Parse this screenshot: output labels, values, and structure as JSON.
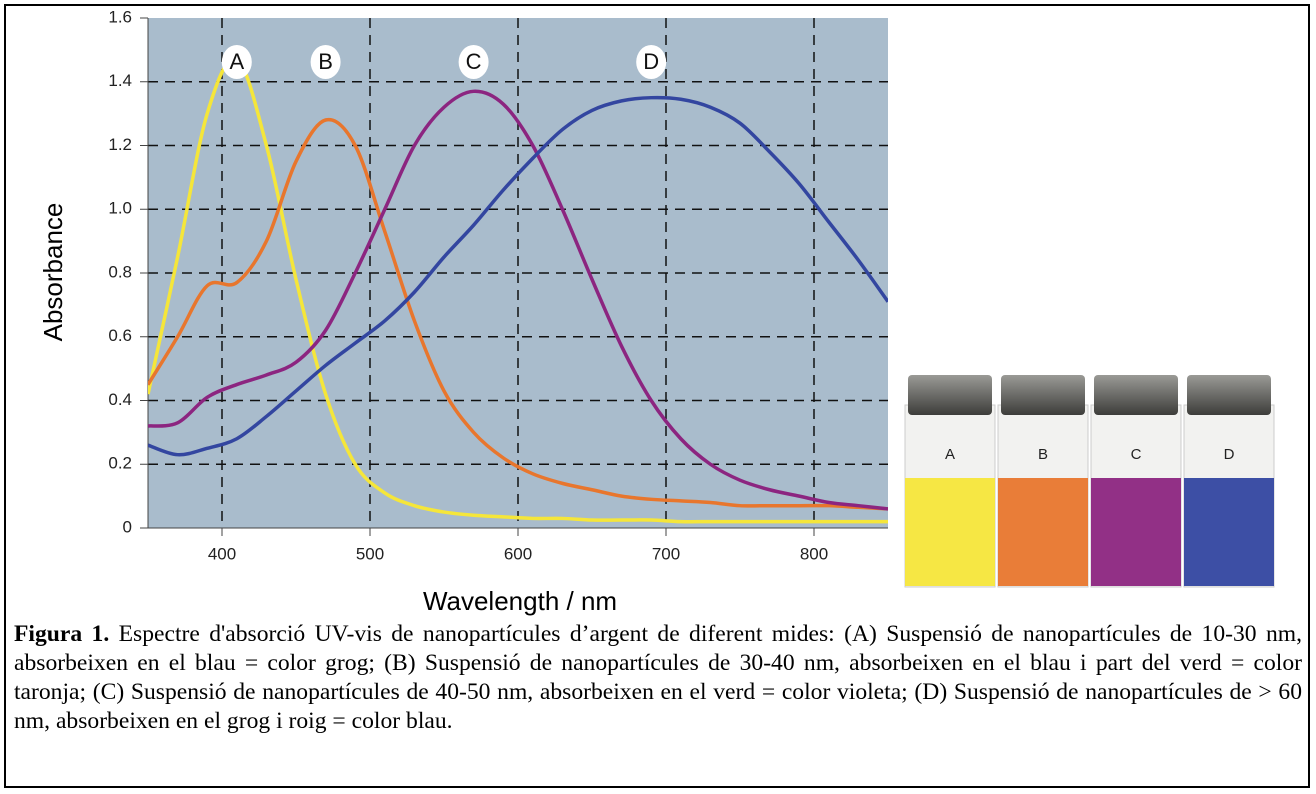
{
  "chart_data": {
    "type": "line",
    "x_label": "Wavelength / nm",
    "y_label": "Absorbance",
    "x": [
      350,
      370,
      390,
      410,
      430,
      450,
      470,
      490,
      510,
      530,
      550,
      570,
      590,
      610,
      630,
      650,
      670,
      690,
      710,
      730,
      750,
      770,
      790,
      810,
      830,
      850
    ],
    "series": [
      {
        "name": "A",
        "color": "#f5e63a",
        "values": [
          0.42,
          0.85,
          1.3,
          1.47,
          1.2,
          0.78,
          0.42,
          0.2,
          0.11,
          0.07,
          0.05,
          0.04,
          0.035,
          0.03,
          0.03,
          0.025,
          0.025,
          0.025,
          0.02,
          0.02,
          0.02,
          0.02,
          0.02,
          0.02,
          0.02,
          0.02
        ]
      },
      {
        "name": "B",
        "color": "#e8762d",
        "values": [
          0.45,
          0.6,
          0.76,
          0.77,
          0.9,
          1.15,
          1.28,
          1.2,
          0.93,
          0.65,
          0.43,
          0.3,
          0.22,
          0.17,
          0.14,
          0.12,
          0.1,
          0.09,
          0.085,
          0.08,
          0.07,
          0.07,
          0.07,
          0.07,
          0.065,
          0.06
        ]
      },
      {
        "name": "C",
        "color": "#8c2580",
        "values": [
          0.32,
          0.33,
          0.41,
          0.45,
          0.48,
          0.52,
          0.62,
          0.8,
          1.0,
          1.2,
          1.32,
          1.37,
          1.33,
          1.2,
          1.0,
          0.78,
          0.57,
          0.4,
          0.28,
          0.2,
          0.15,
          0.12,
          0.1,
          0.08,
          0.07,
          0.06
        ]
      },
      {
        "name": "D",
        "color": "#3346a0",
        "values": [
          0.26,
          0.23,
          0.25,
          0.28,
          0.35,
          0.43,
          0.51,
          0.58,
          0.65,
          0.74,
          0.85,
          0.95,
          1.06,
          1.16,
          1.25,
          1.31,
          1.34,
          1.35,
          1.345,
          1.32,
          1.27,
          1.18,
          1.08,
          0.96,
          0.84,
          0.71
        ]
      }
    ],
    "xlim": [
      350,
      850
    ],
    "xticks": [
      400,
      500,
      600,
      700,
      800
    ],
    "ylim": [
      0,
      1.6
    ],
    "yticks": [
      0,
      0.2,
      0.4,
      0.6,
      0.8,
      {
        "value": 1,
        "label": "1.0"
      },
      1.2,
      1.4,
      1.6
    ],
    "grid": true,
    "background": "#a9bccc"
  },
  "photo": {
    "labels": [
      "A",
      "B",
      "C",
      "D"
    ]
  },
  "caption": {
    "label": "Figura 1.",
    "text": "Espectre d'absorció UV-vis de nanopartícules d’argent de diferent mides: (A) Suspensió de nanopartícules de 10-30 nm, absorbeixen en el blau = color grog; (B) Suspensió de nanopartícules de 30-40 nm, absorbeixen en el blau i part del verd = color taronja; (C) Suspensió de nanopartícules de 40-50 nm, absorbeixen en el verd = color violeta; (D) Suspensió de nanopartícules de > 60 nm, absorbeixen en el grog i roig = color blau."
  }
}
